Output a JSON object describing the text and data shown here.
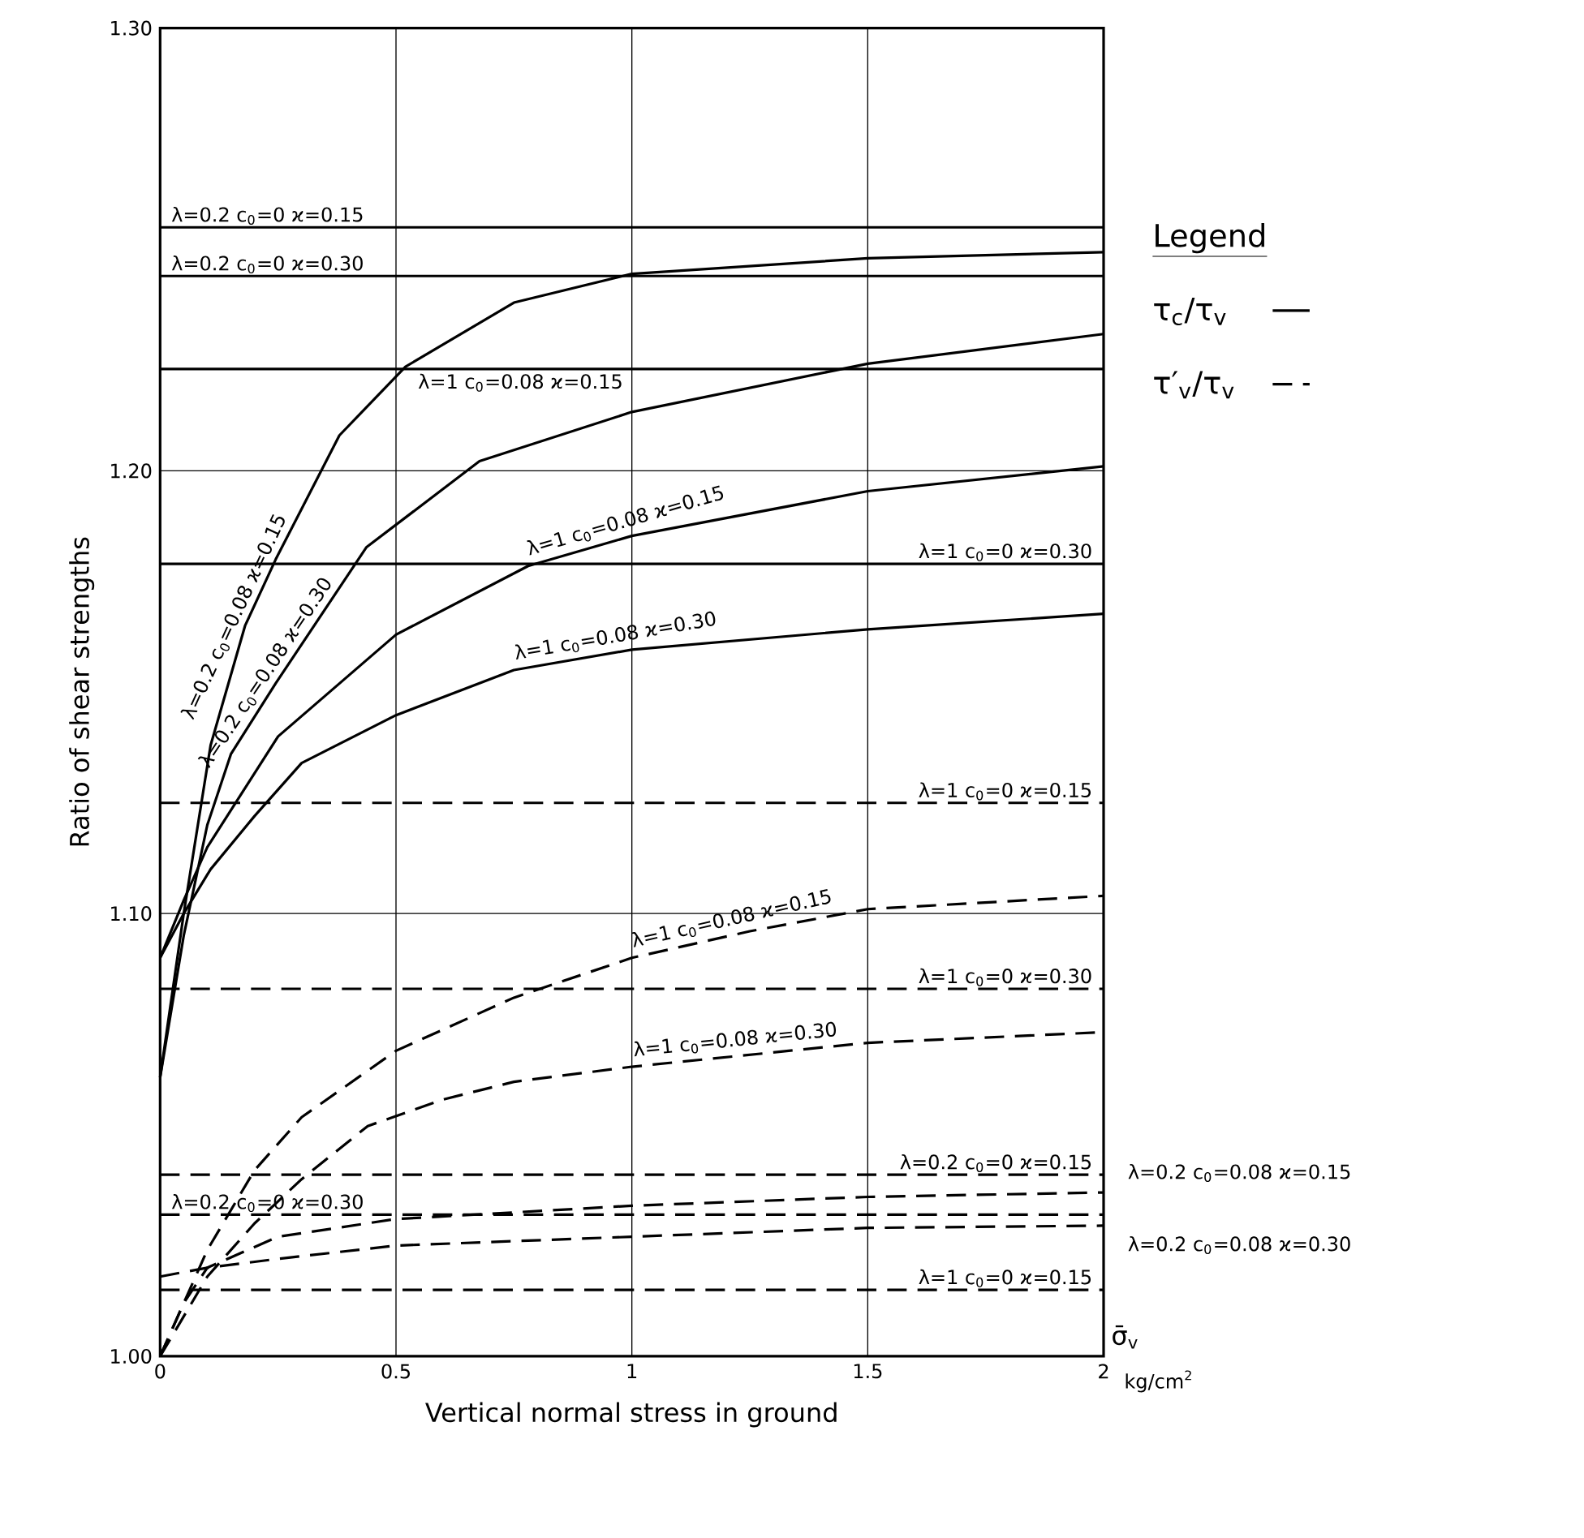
{
  "chart_data": {
    "type": "line",
    "xlabel": "Vertical normal stress in ground",
    "ylabel": "Ratio of shear strengths",
    "legend_title": "Legend",
    "annotations": [
      "σ̄$_{v}$",
      "kg/cm$^{2}$",
      "τ$_{c}$/τ$_{v}$",
      "τ′$_{v}$/τ$_{v}$"
    ],
    "xlim": [
      0,
      2
    ],
    "ylim": [
      1.0,
      1.3
    ],
    "xticks": [
      0,
      0.5,
      1,
      1.5,
      2
    ],
    "yticks": [
      {
        "value": 1.0,
        "label": "1.00"
      },
      {
        "value": 1.1,
        "label": "1.10"
      },
      {
        "value": 1.2,
        "label": "1.20"
      },
      {
        "value": 1.3,
        "label": "1.30"
      }
    ],
    "grid": true,
    "legend": "right",
    "series": [
      {
        "name": "λ=0.2  c$_{0}$=0  ϰ=0.15",
        "color": "#000000",
        "line_style": "solid",
        "x": [
          0,
          2
        ],
        "values": [
          1.255,
          1.255
        ]
      },
      {
        "name": "λ=0.2  c$_{0}$=0  ϰ=0.30",
        "color": "#000000",
        "line_style": "solid",
        "x": [
          0,
          2
        ],
        "values": [
          1.244,
          1.244
        ]
      },
      {
        "name": "λ=0.2  c$_{0}$=0.08  ϰ=0.15",
        "color": "#000000",
        "line_style": "solid",
        "x": [
          0,
          0.05,
          0.107,
          0.18,
          0.245,
          0.38,
          0.52,
          0.75,
          1,
          1.5,
          2
        ],
        "values": [
          1.063,
          1.1,
          1.138,
          1.165,
          1.18,
          1.208,
          1.2235,
          1.238,
          1.2445,
          1.248,
          1.2494
        ]
      },
      {
        "name": "λ=1  c$_{0}$=0.08  ϰ=0.15",
        "color": "#000000",
        "line_style": "solid",
        "x": [
          0,
          2
        ],
        "values": [
          1.223,
          1.223
        ]
      },
      {
        "name": "λ=0.2  c$_{0}$=0.08  ϰ=0.30",
        "color": "#000000",
        "line_style": "solid",
        "x": [
          0,
          0.05,
          0.1,
          0.15,
          0.245,
          0.437,
          0.677,
          1,
          1.5,
          2
        ],
        "values": [
          1.063,
          1.095,
          1.12,
          1.136,
          1.152,
          1.1827,
          1.2022,
          1.2133,
          1.2242,
          1.2309
        ]
      },
      {
        "name": "λ=1  c$_{0}$=0.08  ϰ=0.15",
        "color": "#000000",
        "line_style": "solid",
        "x": [
          0,
          0.05,
          0.1,
          0.25,
          0.5,
          0.78,
          1,
          1.5,
          2
        ],
        "values": [
          1.09,
          1.103,
          1.115,
          1.14,
          1.163,
          1.1785,
          1.1853,
          1.1954,
          1.201
        ]
      },
      {
        "name": "λ=1  c$_{0}$=0  ϰ=0.30",
        "color": "#000000",
        "line_style": "solid",
        "x": [
          0,
          2
        ],
        "values": [
          1.179,
          1.179
        ]
      },
      {
        "name": "λ=1  c$_{0}$=0.08  ϰ=0.30",
        "color": "#000000",
        "line_style": "solid",
        "x": [
          0,
          0.05,
          0.107,
          0.2,
          0.3,
          0.5,
          0.75,
          1,
          1.5,
          2
        ],
        "values": [
          1.09,
          1.1,
          1.11,
          1.122,
          1.134,
          1.1448,
          1.155,
          1.1596,
          1.1642,
          1.1677
        ]
      },
      {
        "name": "λ=1  c$_{0}$=0  ϰ=0.15",
        "color": "#000000",
        "line_style": "dashed",
        "x": [
          0,
          2
        ],
        "values": [
          1.125,
          1.125
        ]
      },
      {
        "name": "λ=1  c$_{0}$=0.08  ϰ=0.15",
        "color": "#000000",
        "line_style": "dashed",
        "x": [
          0,
          0.05,
          0.1,
          0.2,
          0.3,
          0.5,
          0.75,
          1,
          1.25,
          1.5,
          2
        ],
        "values": [
          1.0,
          1.012,
          1.024,
          1.042,
          1.054,
          1.069,
          1.081,
          1.09,
          1.096,
          1.101,
          1.104
        ]
      },
      {
        "name": "λ=1  c$_{0}$=0  ϰ=0.30",
        "color": "#000000",
        "line_style": "dashed",
        "x": [
          0,
          2
        ],
        "values": [
          1.083,
          1.083
        ]
      },
      {
        "name": "λ=1  c$_{0}$=0.08  ϰ=0.30",
        "color": "#000000",
        "line_style": "dashed",
        "x": [
          0,
          0.1,
          0.2,
          0.3,
          0.44,
          0.6,
          0.75,
          1,
          1.5,
          2
        ],
        "values": [
          1.0,
          1.018,
          1.03,
          1.04,
          1.052,
          1.058,
          1.062,
          1.0654,
          1.0708,
          1.0732
        ]
      },
      {
        "name": "λ=0.2  c$_{0}$=0  ϰ=0.15",
        "color": "#000000",
        "line_style": "dashed",
        "x": [
          0,
          2
        ],
        "values": [
          1.041,
          1.041
        ]
      },
      {
        "name": "λ=0.2  c$_{0}$=0  ϰ=0.30",
        "color": "#000000",
        "line_style": "dashed",
        "x": [
          0,
          2
        ],
        "values": [
          1.032,
          1.032
        ]
      },
      {
        "name": "λ=0.2  c$_{0}$=0.08  ϰ=0.15",
        "color": "#000000",
        "line_style": "dashed",
        "x": [
          0,
          0.05,
          0.1,
          0.25,
          0.5,
          1,
          1.5,
          2
        ],
        "values": [
          1.0,
          1.012,
          1.02,
          1.027,
          1.031,
          1.034,
          1.036,
          1.037
        ]
      },
      {
        "name": "λ=0.2  c$_{0}$=0.08  ϰ=0.30",
        "color": "#000000",
        "line_style": "dashed",
        "x": [
          0,
          0.1,
          0.25,
          0.5,
          1,
          1.5,
          2
        ],
        "values": [
          1.018,
          1.02,
          1.022,
          1.025,
          1.027,
          1.029,
          1.0295
        ]
      },
      {
        "name": "λ=1  c$_{0}$=0  ϰ=0.15",
        "color": "#000000",
        "line_style": "dashed",
        "x": [
          0,
          2
        ],
        "values": [
          1.015,
          1.015
        ]
      }
    ]
  }
}
